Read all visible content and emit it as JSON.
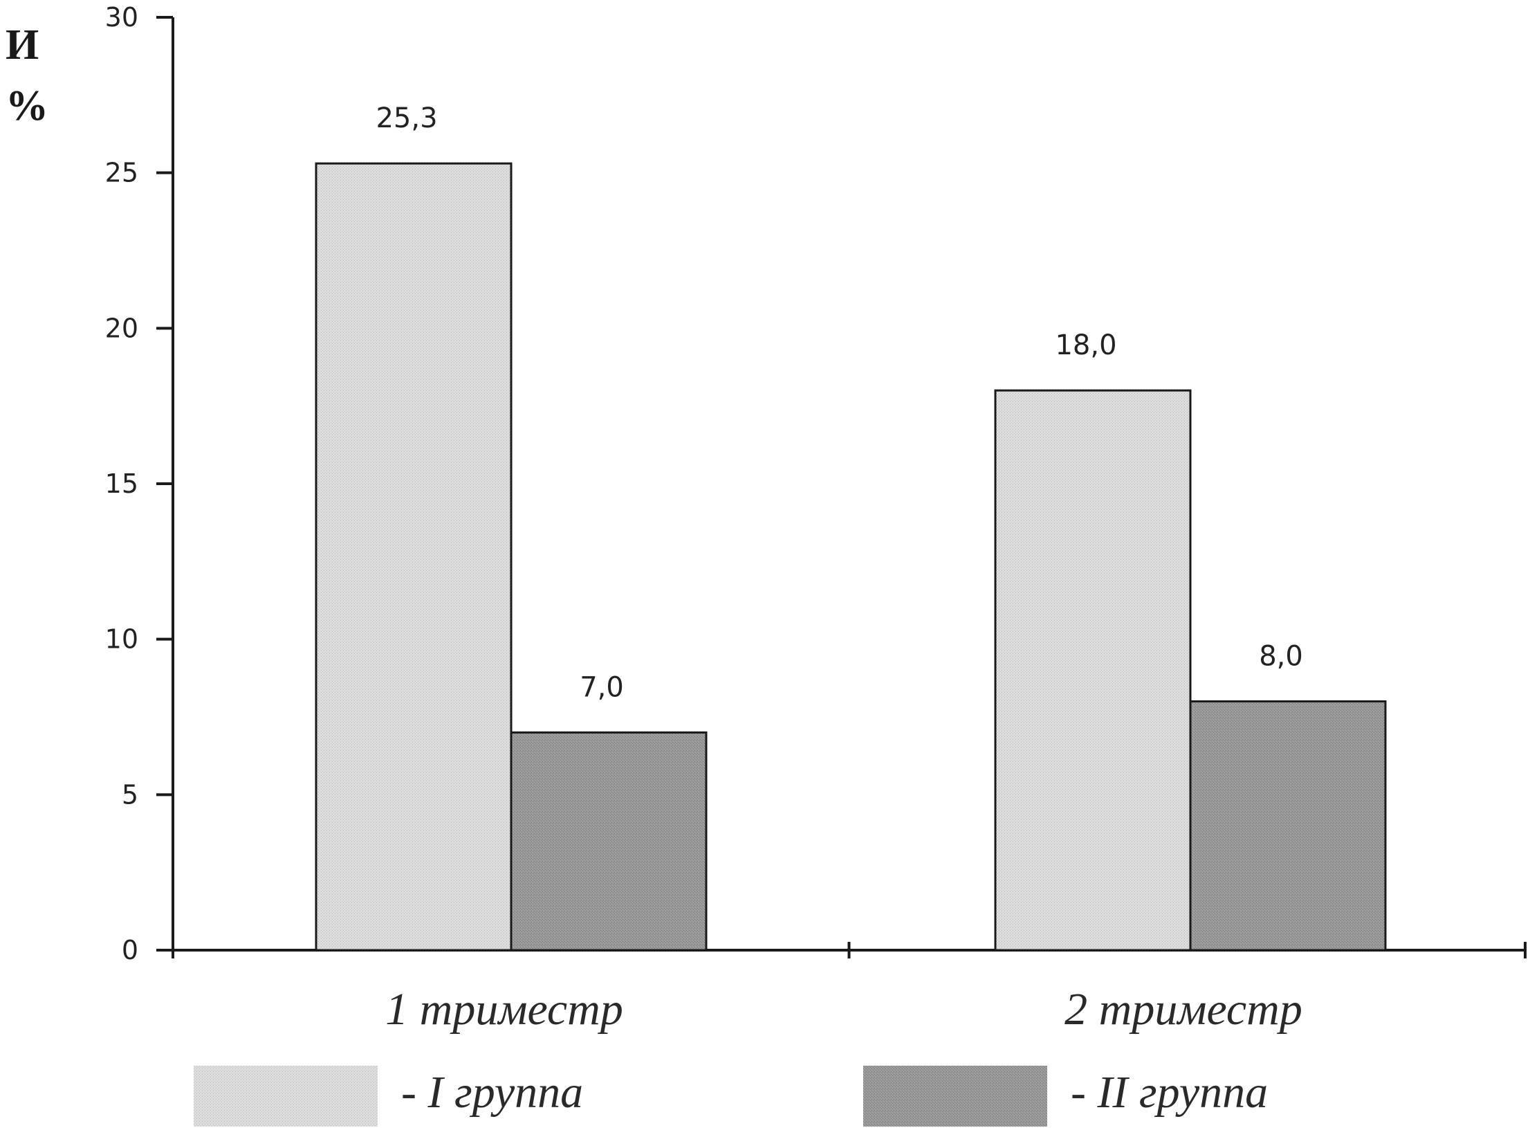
{
  "chart_data": {
    "type": "bar",
    "ylabel_lines": [
      "И",
      "%"
    ],
    "categories": [
      "1 триместр",
      "2 триместр"
    ],
    "series": [
      {
        "name": "- I группа",
        "values": [
          25.3,
          18.0
        ],
        "labels": [
          "25,3",
          "18,0"
        ],
        "color": "#d4d4d4"
      },
      {
        "name": "- II группа",
        "values": [
          7.0,
          8.0
        ],
        "labels": [
          "7,0",
          "8,0"
        ],
        "color": "#8f8f8f"
      }
    ],
    "ylim": [
      0,
      30
    ],
    "yticks": [
      0,
      5,
      10,
      15,
      20,
      25,
      30
    ],
    "grid": false,
    "legend_position": "bottom"
  }
}
